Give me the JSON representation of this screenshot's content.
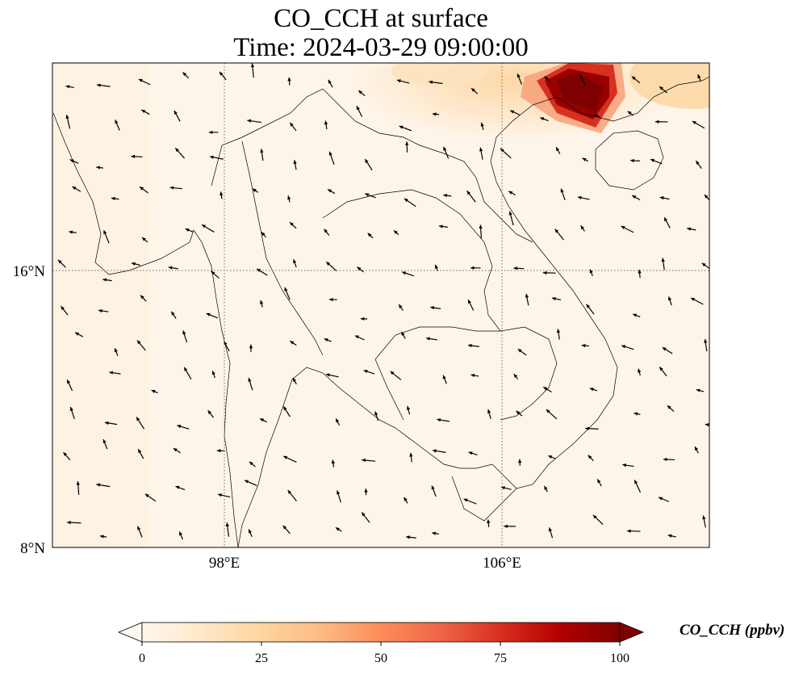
{
  "title": {
    "line1": "CO_CCH at surface",
    "line2": "Time: 2024-03-29 09:00:00"
  },
  "map": {
    "lon_range": [
      93.0,
      112.0
    ],
    "lat_range": [
      8.0,
      22.0
    ],
    "grid": {
      "lon_ticks": [
        "98°E",
        "106°E"
      ],
      "lat_ticks": [
        "16°N",
        "8°N"
      ],
      "style": "dotted"
    },
    "field": "CO_CCH",
    "hotspot": {
      "center_lon": 109.3,
      "center_lat": 21.0,
      "peak_ppbv": 100
    },
    "wind_vectors": "quiver arrows, predominantly north-westward over land and sea"
  },
  "colorbar": {
    "label": "CO_CCH (ppbv)",
    "ticks": [
      "0",
      "25",
      "50",
      "75",
      "100"
    ],
    "colormap": "OrRd",
    "extend": "both",
    "colors": [
      "#fff7ec",
      "#fee8c8",
      "#fdd49e",
      "#fdbb84",
      "#fc8d59",
      "#ef6548",
      "#d7301f",
      "#b30000",
      "#7f0000"
    ]
  }
}
